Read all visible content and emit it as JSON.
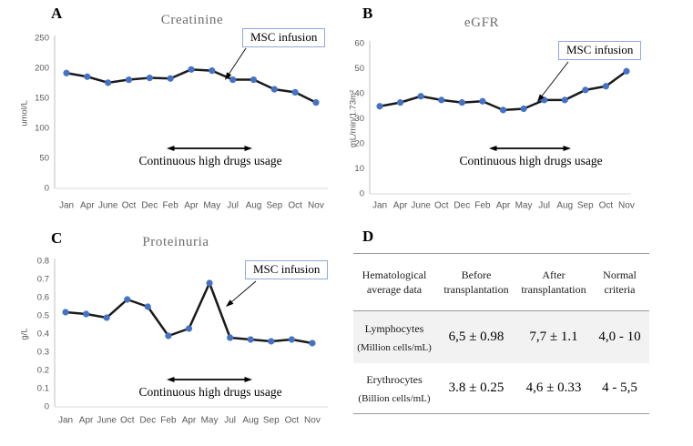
{
  "colors": {
    "marker_blue": "#4472c4",
    "line_black": "#1a1a1a",
    "axis_gray": "#bfbfbf",
    "baseline_gray": "#d9d9d9",
    "tick_text_gray": "#595959",
    "title_gray": "#6e6e6e",
    "annotation_box_border": "#8faadc",
    "table_line_gray": "#9a9a9a",
    "shaded_row": "#f2f2f2"
  },
  "chart_data": [
    {
      "type": "line",
      "panel_letter": "A",
      "title": "Creatinine",
      "ylabel": "umol/L",
      "categories": [
        "Jan",
        "Apr",
        "June",
        "Oct",
        "Dec",
        "Feb",
        "Apr",
        "May",
        "Jul",
        "Aug",
        "Sep",
        "Oct",
        "Nov"
      ],
      "values": [
        192,
        186,
        176,
        181,
        184,
        183,
        198,
        196,
        181,
        181,
        165,
        160,
        143
      ],
      "ylim": [
        0,
        250
      ],
      "ytick_step": 50,
      "grid": false,
      "legend": "none",
      "line_color": "#1a1a1a",
      "marker_color": "#4472c4",
      "annotations": {
        "msc_infusion": "MSC infusion",
        "drug_usage": "Continuous high drugs usage"
      }
    },
    {
      "type": "line",
      "panel_letter": "B",
      "title": "eGFR",
      "ylabel": "mL/min/1.73m²",
      "categories": [
        "Jan",
        "Apr",
        "June",
        "Oct",
        "Dec",
        "Feb",
        "Apr",
        "May",
        "Jul",
        "Aug",
        "Sep",
        "Oct",
        "Nov"
      ],
      "values": [
        35,
        36.5,
        39,
        37.5,
        36.5,
        37,
        33.5,
        34,
        37.5,
        37.5,
        41.5,
        43,
        49
      ],
      "ylim": [
        0,
        60
      ],
      "ytick_step": 10,
      "grid": false,
      "legend": "none",
      "line_color": "#1a1a1a",
      "marker_color": "#4472c4",
      "annotations": {
        "msc_infusion": "MSC infusion",
        "drug_usage": "Continuous high drugs usage"
      }
    },
    {
      "type": "line",
      "panel_letter": "C",
      "title": "Proteinuria",
      "ylabel": "g/L",
      "categories": [
        "Jan",
        "Apr",
        "June",
        "Oct",
        "Dec",
        "Feb",
        "Apr",
        "May",
        "Jul",
        "Aug",
        "Sep",
        "Oct",
        "Nov"
      ],
      "values": [
        0.52,
        0.51,
        0.49,
        0.59,
        0.55,
        0.39,
        0.43,
        0.68,
        0.38,
        0.37,
        0.36,
        0.37,
        0.35
      ],
      "ylim": [
        0,
        0.8
      ],
      "ytick_step": 0.1,
      "grid": false,
      "legend": "none",
      "line_color": "#1a1a1a",
      "marker_color": "#4472c4",
      "annotations": {
        "msc_infusion": "MSC infusion",
        "drug_usage": "Continuous high drugs usage"
      }
    }
  ],
  "table_panel": {
    "panel_letter": "D",
    "columns": [
      "Hematological average data",
      "Before transplantation",
      "After transplantation",
      "Normal criteria"
    ],
    "rows": [
      {
        "name": "Lymphocytes",
        "unit": "(Million cells/mL)",
        "before": "6,5 ± 0.98",
        "after": "7,7 ± 1.1",
        "normal": "4,0 - 10"
      },
      {
        "name": "Erythrocytes",
        "unit": "(Billion cells/mL)",
        "before": "3.8 ± 0.25",
        "after": "4,6 ± 0.33",
        "normal": "4 - 5,5"
      }
    ]
  }
}
